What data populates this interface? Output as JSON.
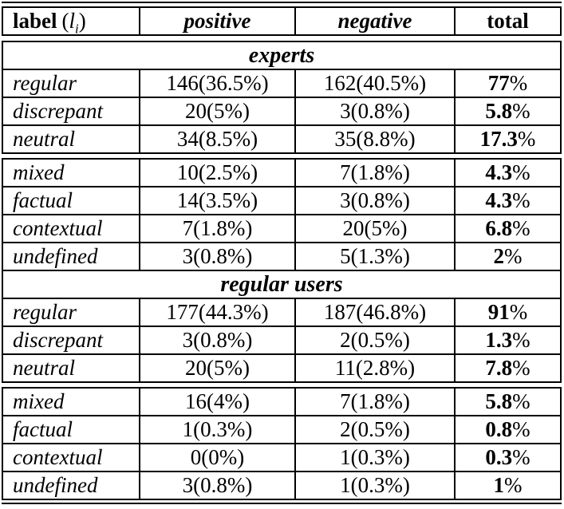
{
  "table": {
    "header": {
      "label_bold": "label",
      "math_open": "(",
      "math_var": "l",
      "math_sub": "i",
      "math_close": ")",
      "col_positive": "positive",
      "col_negative": "negative",
      "col_total": "total"
    },
    "symbols": {
      "percent": "%"
    },
    "sections": [
      {
        "title": "experts",
        "group1": [
          {
            "label": "regular",
            "positive": "146(36.5%)",
            "negative": "162(40.5%)",
            "total": "77"
          },
          {
            "label": "discrepant",
            "positive": "20(5%)",
            "negative": "3(0.8%)",
            "total": "5.8"
          },
          {
            "label": "neutral",
            "positive": "34(8.5%)",
            "negative": "35(8.8%)",
            "total": "17.3"
          }
        ],
        "group2": [
          {
            "label": "mixed",
            "positive": "10(2.5%)",
            "negative": "7(1.8%)",
            "total": "4.3"
          },
          {
            "label": "factual",
            "positive": "14(3.5%)",
            "negative": "3(0.8%)",
            "total": "4.3"
          },
          {
            "label": "contextual",
            "positive": "7(1.8%)",
            "negative": "20(5%)",
            "total": "6.8"
          },
          {
            "label": "undefined",
            "positive": "3(0.8%)",
            "negative": "5(1.3%)",
            "total": "2"
          }
        ]
      },
      {
        "title": "regular users",
        "group1": [
          {
            "label": "regular",
            "positive": "177(44.3%)",
            "negative": "187(46.8%)",
            "total": "91"
          },
          {
            "label": "discrepant",
            "positive": "3(0.8%)",
            "negative": "2(0.5%)",
            "total": "1.3"
          },
          {
            "label": "neutral",
            "positive": "20(5%)",
            "negative": "11(2.8%)",
            "total": "7.8"
          }
        ],
        "group2": [
          {
            "label": "mixed",
            "positive": "16(4%)",
            "negative": "7(1.8%)",
            "total": "5.8"
          },
          {
            "label": "factual",
            "positive": "1(0.3%)",
            "negative": "2(0.5%)",
            "total": "0.8"
          },
          {
            "label": "contextual",
            "positive": "0(0%)",
            "negative": "1(0.3%)",
            "total": "0.3"
          },
          {
            "label": "undefined",
            "positive": "3(0.8%)",
            "negative": "1(0.3%)",
            "total": "1"
          }
        ]
      }
    ]
  }
}
